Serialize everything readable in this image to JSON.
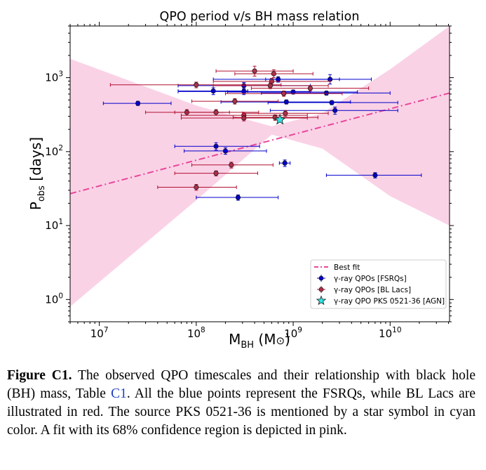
{
  "caption": {
    "label": "Figure C1.",
    "text_before_ref": " The observed QPO timescales and their relationship with black hole (BH) mass, Table ",
    "ref": "C1",
    "text_after_ref": ". All the blue points represent the FSRQs, while BL Lacs are illustrated in red. The source PKS 0521-36 is mentioned by a star symbol in cyan color. A fit with its 68% confidence region is depicted in pink."
  },
  "colors": {
    "fsrq": "#0000cc",
    "bllac_fill": "#b0304a",
    "bllac_err": "#b01030",
    "agn_star": "#2ee6e6",
    "fit_line": "#e8479a",
    "confidence": "#fad2e6"
  },
  "chart_data": {
    "type": "scatter",
    "title": "QPO period v/s BH mass relation",
    "xlabel": "M_BH (M_⊙)",
    "ylabel": "P_obs [days]",
    "xscale": "log",
    "yscale": "log",
    "xlim": [
      5000000.0,
      41000000000.0
    ],
    "ylim": [
      0.5,
      5000
    ],
    "xticks": [
      {
        "value": 10000000.0,
        "base": "10",
        "exp": "7"
      },
      {
        "value": 100000000.0,
        "base": "10",
        "exp": "8"
      },
      {
        "value": 1000000000.0,
        "base": "10",
        "exp": "9"
      },
      {
        "value": 10000000000.0,
        "base": "10",
        "exp": "10"
      }
    ],
    "yticks": [
      {
        "value": 1,
        "base": "10",
        "exp": "0"
      },
      {
        "value": 10,
        "base": "10",
        "exp": "1"
      },
      {
        "value": 100,
        "base": "10",
        "exp": "2"
      },
      {
        "value": 1000,
        "base": "10",
        "exp": "3"
      }
    ],
    "legend": {
      "placement": "lower-right",
      "entries": [
        {
          "label": "Best fit",
          "kind": "line"
        },
        {
          "label": "γ-ray QPOs [FSRQs]",
          "kind": "fsrq"
        },
        {
          "label": "γ-ray QPOs [BL Lacs]",
          "kind": "bllac"
        },
        {
          "label": "γ-ray QPO PKS 0521-36 [AGN]",
          "kind": "star"
        }
      ]
    },
    "fit": {
      "points": [
        [
          5000000.0,
          27
        ],
        [
          41000000000.0,
          620
        ]
      ],
      "band_upper": [
        [
          5000000.0,
          1800
        ],
        [
          100000000.0,
          420
        ],
        [
          600000000.0,
          220
        ],
        [
          2000000000.0,
          330
        ],
        [
          10000000000.0,
          1300
        ],
        [
          41000000000.0,
          5000
        ]
      ],
      "band_lower": [
        [
          5000000.0,
          0.8
        ],
        [
          100000000.0,
          22
        ],
        [
          600000000.0,
          170
        ],
        [
          2000000000.0,
          110
        ],
        [
          10000000000.0,
          25
        ],
        [
          41000000000.0,
          10
        ]
      ]
    },
    "series": [
      {
        "name": "γ-ray QPOs [FSRQs]",
        "marker": "circle",
        "points": [
          {
            "x": 25000000.0,
            "y": 450,
            "xerr": [
              11000000.0,
              55000000.0
            ],
            "yerr": [
              420,
              480
            ]
          },
          {
            "x": 150000000.0,
            "y": 660,
            "xerr": [
              65000000.0,
              340000000.0
            ],
            "yerr": [
              590,
              730
            ]
          },
          {
            "x": 310000000.0,
            "y": 780,
            "xerr": [
              65000000.0,
              1500000000.0
            ],
            "yerr": [
              700,
              860
            ]
          },
          {
            "x": 310000000.0,
            "y": 650,
            "xerr": [
              65000000.0,
              1500000000.0
            ],
            "yerr": [
              590,
              710
            ]
          },
          {
            "x": 700000000.0,
            "y": 950,
            "xerr": [
              150000000.0,
              3000000000.0
            ],
            "yerr": [
              870,
              1030
            ]
          },
          {
            "x": 1000000000.0,
            "y": 640,
            "xerr": [
              210000000.0,
              4600000000.0
            ],
            "yerr": [
              600,
              680
            ]
          },
          {
            "x": 2200000000.0,
            "y": 620,
            "xerr": [
              470000000.0,
              10000000000.0
            ],
            "yerr": [
              580,
              660
            ]
          },
          {
            "x": 2400000000.0,
            "y": 950,
            "xerr": [
              520000000.0,
              6400000000.0
            ],
            "yerr": [
              820,
              1100
            ]
          },
          {
            "x": 850000000.0,
            "y": 470,
            "xerr": [
              180000000.0,
              3900000000.0
            ],
            "yerr": [
              440,
              500
            ]
          },
          {
            "x": 2500000000.0,
            "y": 460,
            "xerr": [
              550000000.0,
              12000000000.0
            ],
            "yerr": [
              430,
              490
            ]
          },
          {
            "x": 2700000000.0,
            "y": 360,
            "xerr": [
              580000000.0,
              12000000000.0
            ],
            "yerr": [
              320,
              400
            ]
          },
          {
            "x": 160000000.0,
            "y": 118,
            "xerr": [
              60000000.0,
              450000000.0
            ],
            "yerr": [
              105,
              132
            ]
          },
          {
            "x": 200000000.0,
            "y": 102,
            "xerr": [
              75000000.0,
              530000000.0
            ],
            "yerr": [
              92,
              113
            ]
          },
          {
            "x": 820000000.0,
            "y": 70,
            "xerr": [
              720000000.0,
              930000000.0
            ],
            "yerr": [
              63,
              77
            ]
          },
          {
            "x": 7000000000.0,
            "y": 48,
            "xerr": [
              2200000000.0,
              21000000000.0
            ],
            "yerr": [
              44,
              52
            ]
          },
          {
            "x": 270000000.0,
            "y": 24,
            "xerr": [
              100000000.0,
              700000000.0
            ],
            "yerr": [
              22,
              26
            ]
          }
        ]
      },
      {
        "name": "γ-ray QPOs [BL Lacs]",
        "marker": "circle",
        "points": [
          {
            "x": 400000000.0,
            "y": 1230,
            "xerr": [
              160000000.0,
              1000000000.0
            ],
            "yerr": [
              1050,
              1430
            ]
          },
          {
            "x": 630000000.0,
            "y": 1130,
            "xerr": [
              250000000.0,
              1600000000.0
            ],
            "yerr": [
              1000,
              1280
            ]
          },
          {
            "x": 100000000.0,
            "y": 800,
            "xerr": [
              13000000.0,
              750000000.0
            ],
            "yerr": [
              730,
              870
            ]
          },
          {
            "x": 600000000.0,
            "y": 890,
            "xerr": [
              150000000.0,
              2400000000.0
            ],
            "yerr": [
              810,
              980
            ]
          },
          {
            "x": 580000000.0,
            "y": 780,
            "xerr": [
              150000000.0,
              2300000000.0
            ],
            "yerr": [
              710,
              850
            ]
          },
          {
            "x": 800000000.0,
            "y": 610,
            "xerr": [
              200000000.0,
              3200000000.0
            ],
            "yerr": [
              560,
              660
            ]
          },
          {
            "x": 1500000000.0,
            "y": 720,
            "xerr": [
              370000000.0,
              6000000000.0
            ],
            "yerr": [
              660,
              780
            ]
          },
          {
            "x": 250000000.0,
            "y": 480,
            "xerr": [
              90000000.0,
              700000000.0
            ],
            "yerr": [
              440,
              520
            ]
          },
          {
            "x": 80000000.0,
            "y": 340,
            "xerr": [
              30000000.0,
              220000000.0
            ],
            "yerr": [
              310,
              370
            ]
          },
          {
            "x": 160000000.0,
            "y": 340,
            "xerr": [
              60000000.0,
              440000000.0
            ],
            "yerr": [
              310,
              370
            ]
          },
          {
            "x": 310000000.0,
            "y": 310,
            "xerr": [
              70000000.0,
              1400000000.0
            ],
            "yerr": [
              280,
              340
            ]
          },
          {
            "x": 310000000.0,
            "y": 285,
            "xerr": [
              70000000.0,
              1400000000.0
            ],
            "yerr": [
              260,
              310
            ]
          },
          {
            "x": 650000000.0,
            "y": 290,
            "xerr": [
              240000000.0,
              1800000000.0
            ],
            "yerr": [
              265,
              315
            ]
          },
          {
            "x": 830000000.0,
            "y": 330,
            "xerr": [
              300000000.0,
              2300000000.0
            ],
            "yerr": [
              300,
              360
            ]
          },
          {
            "x": 230000000.0,
            "y": 66,
            "xerr": [
              90000000.0,
              620000000.0
            ],
            "yerr": [
              60,
              72
            ]
          },
          {
            "x": 160000000.0,
            "y": 51,
            "xerr": [
              60000000.0,
              430000000.0
            ],
            "yerr": [
              47,
              55
            ]
          },
          {
            "x": 100000000.0,
            "y": 33,
            "xerr": [
              40000000.0,
              260000000.0
            ],
            "yerr": [
              30,
              36
            ]
          }
        ]
      },
      {
        "name": "γ-ray QPO PKS 0521-36 [AGN]",
        "marker": "star",
        "points": [
          {
            "x": 730000000.0,
            "y": 270
          }
        ]
      }
    ]
  }
}
